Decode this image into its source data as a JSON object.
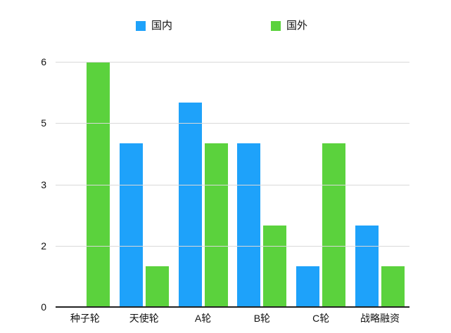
{
  "chart_data": {
    "type": "bar",
    "categories": [
      "种子轮",
      "天使轮",
      "A轮",
      "B轮",
      "C轮",
      "战略融资"
    ],
    "series": [
      {
        "name": "国内",
        "color": "#1ea2fa",
        "values": [
          0,
          4,
          5,
          4,
          1,
          2
        ]
      },
      {
        "name": "国外",
        "color": "#5bd23d",
        "values": [
          6,
          1,
          4,
          2,
          4,
          1
        ]
      }
    ],
    "title": "",
    "xlabel": "",
    "ylabel": "",
    "ylim": [
      0,
      6
    ],
    "y_ticks": [
      {
        "value": 0,
        "label": "0"
      },
      {
        "value": 1.5,
        "label": "2"
      },
      {
        "value": 3,
        "label": "3"
      },
      {
        "value": 4.5,
        "label": "5"
      },
      {
        "value": 6,
        "label": "6"
      }
    ],
    "grid": true,
    "legend_position": "top",
    "colors": {
      "gridline": "#d9d9d9",
      "axis_line": "#222222",
      "text": "#111111",
      "background": "#ffffff"
    }
  }
}
